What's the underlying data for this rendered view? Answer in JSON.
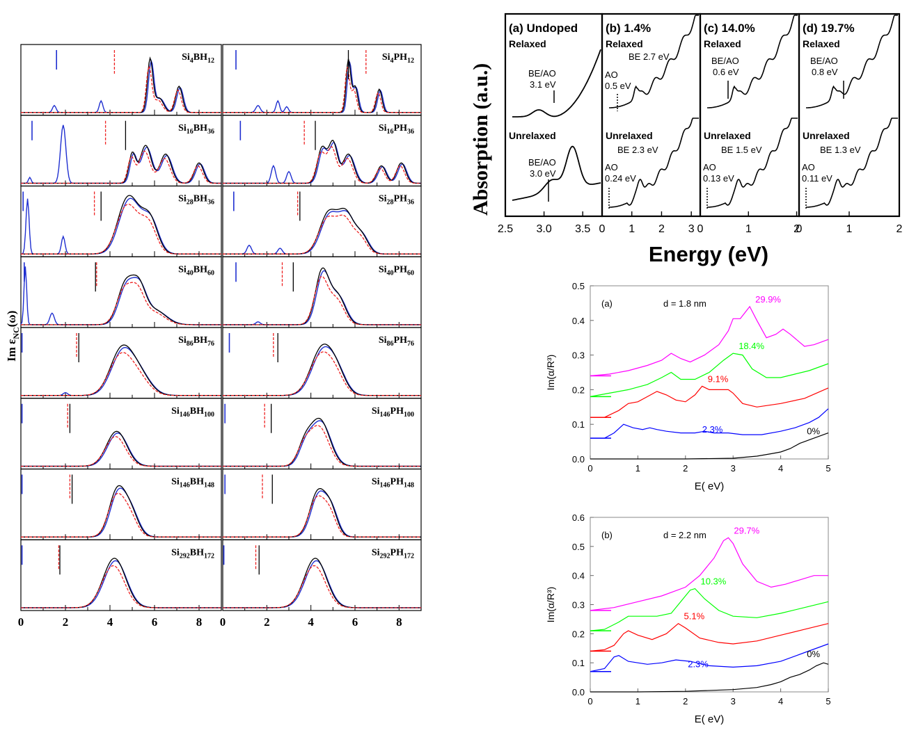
{
  "left_panel": {
    "ylabel": "Im ε",
    "ylabel_sub": "NC",
    "ylabel_tail": "(ω)",
    "x_ticks": [
      "0",
      "2",
      "4",
      "6",
      "8"
    ],
    "xlim": [
      0,
      9
    ],
    "columns": [
      {
        "name": "boron",
        "labels": [
          {
            "a": "Si",
            "as": "4",
            "b": "BH",
            "bs": "12"
          },
          {
            "a": "Si",
            "as": "16",
            "b": "BH",
            "bs": "36"
          },
          {
            "a": "Si",
            "as": "28",
            "b": "BH",
            "bs": "36"
          },
          {
            "a": "Si",
            "as": "40",
            "b": "BH",
            "bs": "60"
          },
          {
            "a": "Si",
            "as": "86",
            "b": "BH",
            "bs": "76"
          },
          {
            "a": "Si",
            "as": "146",
            "b": "BH",
            "bs": "100"
          },
          {
            "a": "Si",
            "as": "146",
            "b": "BH",
            "bs": "148"
          },
          {
            "a": "Si",
            "as": "292",
            "b": "BH",
            "bs": "172"
          }
        ]
      },
      {
        "name": "phosphorus",
        "labels": [
          {
            "a": "Si",
            "as": "4",
            "b": "PH",
            "bs": "12"
          },
          {
            "a": "Si",
            "as": "16",
            "b": "PH",
            "bs": "36"
          },
          {
            "a": "Si",
            "as": "28",
            "b": "PH",
            "bs": "36"
          },
          {
            "a": "Si",
            "as": "40",
            "b": "PH",
            "bs": "60"
          },
          {
            "a": "Si",
            "as": "86",
            "b": "PH",
            "bs": "76"
          },
          {
            "a": "Si",
            "as": "146",
            "b": "PH",
            "bs": "100"
          },
          {
            "a": "Si",
            "as": "146",
            "b": "PH",
            "bs": "148"
          },
          {
            "a": "Si",
            "as": "292",
            "b": "PH",
            "bs": "172"
          }
        ]
      }
    ]
  },
  "top_right": {
    "ylabel": "Absorption (a.u.)",
    "xlabel": "Energy (eV)",
    "panels": [
      {
        "title": "(a) Undoped",
        "relaxed": "Relaxed",
        "unrelaxed": "Unrelaxed",
        "ann_r": [
          "BE/AO",
          "3.1 eV"
        ],
        "ann_u": [
          "BE/AO",
          "3.0 eV"
        ],
        "ticks": [
          "2.5",
          "3.0",
          "3.5"
        ],
        "xlim": [
          2.5,
          3.75
        ]
      },
      {
        "title": "(b) 1.4%",
        "relaxed": "Relaxed",
        "unrelaxed": "Unrelaxed",
        "ann_r_be": "BE 2.7 eV",
        "ann_r_ao": [
          "AO",
          "0.5 eV"
        ],
        "ann_u_be": "BE 2.3 eV",
        "ann_u_ao": [
          "AO",
          "0.24 eV"
        ],
        "ticks": [
          "0",
          "1",
          "2",
          "3"
        ],
        "xlim": [
          0,
          3.3
        ]
      },
      {
        "title": "(c) 14.0%",
        "relaxed": "Relaxed",
        "unrelaxed": "Unrelaxed",
        "ann_r": [
          "BE/AO",
          "0.6 eV"
        ],
        "ann_u_be": "BE 1.5 eV",
        "ann_u_ao": [
          "AO",
          "0.13 eV"
        ],
        "ticks": [
          "0",
          "1",
          "2"
        ],
        "xlim": [
          0,
          2.05
        ]
      },
      {
        "title": "(d) 19.7%",
        "relaxed": "Relaxed",
        "unrelaxed": "Unrelaxed",
        "ann_r": [
          "BE/AO",
          "0.8 eV"
        ],
        "ann_u_be": "BE 1.3 eV",
        "ann_u_ao": [
          "AO",
          "0.11 eV"
        ],
        "ticks": [
          "0",
          "1",
          "2"
        ],
        "xlim": [
          0,
          2.0
        ]
      }
    ]
  },
  "chart_data": [
    {
      "type": "line",
      "title": "(a)",
      "annotation": "d = 1.8 nm",
      "xlabel": "E( eV)",
      "ylabel": "Im(α/R³)",
      "xlim": [
        0,
        5
      ],
      "ylim": [
        0,
        0.5
      ],
      "x_ticks": [
        "0",
        "1",
        "2",
        "3",
        "4",
        "5"
      ],
      "y_ticks": [
        "0.0",
        "0.1",
        "0.2",
        "0.3",
        "0.4",
        "0.5"
      ],
      "series": [
        {
          "name": "29.9%",
          "color": "#ff00ff",
          "points": [
            [
              0,
              0.24
            ],
            [
              0.4,
              0.245
            ],
            [
              0.8,
              0.255
            ],
            [
              1.2,
              0.27
            ],
            [
              1.5,
              0.285
            ],
            [
              1.7,
              0.305
            ],
            [
              1.9,
              0.29
            ],
            [
              2.1,
              0.28
            ],
            [
              2.4,
              0.3
            ],
            [
              2.7,
              0.33
            ],
            [
              2.9,
              0.37
            ],
            [
              3.0,
              0.405
            ],
            [
              3.15,
              0.405
            ],
            [
              3.35,
              0.44
            ],
            [
              3.5,
              0.4
            ],
            [
              3.7,
              0.35
            ],
            [
              3.9,
              0.36
            ],
            [
              4.05,
              0.375
            ],
            [
              4.2,
              0.36
            ],
            [
              4.5,
              0.325
            ],
            [
              4.7,
              0.33
            ],
            [
              5,
              0.345
            ]
          ]
        },
        {
          "name": "18.4%",
          "color": "#00ff00",
          "points": [
            [
              0,
              0.18
            ],
            [
              0.4,
              0.19
            ],
            [
              0.8,
              0.2
            ],
            [
              1.2,
              0.215
            ],
            [
              1.5,
              0.235
            ],
            [
              1.7,
              0.25
            ],
            [
              1.9,
              0.23
            ],
            [
              2.2,
              0.23
            ],
            [
              2.5,
              0.25
            ],
            [
              2.8,
              0.285
            ],
            [
              3.0,
              0.305
            ],
            [
              3.2,
              0.3
            ],
            [
              3.4,
              0.26
            ],
            [
              3.7,
              0.235
            ],
            [
              4.0,
              0.235
            ],
            [
              4.3,
              0.245
            ],
            [
              4.6,
              0.255
            ],
            [
              5,
              0.275
            ]
          ]
        },
        {
          "name": "9.1%",
          "color": "#ff0000",
          "points": [
            [
              0,
              0.12
            ],
            [
              0.3,
              0.12
            ],
            [
              0.6,
              0.14
            ],
            [
              0.8,
              0.16
            ],
            [
              1.0,
              0.165
            ],
            [
              1.2,
              0.18
            ],
            [
              1.4,
              0.195
            ],
            [
              1.6,
              0.185
            ],
            [
              1.8,
              0.17
            ],
            [
              2.0,
              0.165
            ],
            [
              2.2,
              0.185
            ],
            [
              2.35,
              0.21
            ],
            [
              2.5,
              0.2
            ],
            [
              2.7,
              0.2
            ],
            [
              2.9,
              0.2
            ],
            [
              3.0,
              0.19
            ],
            [
              3.2,
              0.16
            ],
            [
              3.5,
              0.15
            ],
            [
              4.0,
              0.16
            ],
            [
              4.5,
              0.175
            ],
            [
              5,
              0.205
            ]
          ]
        },
        {
          "name": "2.3%",
          "color": "#0000ff",
          "points": [
            [
              0,
              0.06
            ],
            [
              0.3,
              0.06
            ],
            [
              0.5,
              0.075
            ],
            [
              0.7,
              0.1
            ],
            [
              0.9,
              0.09
            ],
            [
              1.1,
              0.085
            ],
            [
              1.25,
              0.09
            ],
            [
              1.4,
              0.085
            ],
            [
              1.6,
              0.08
            ],
            [
              1.9,
              0.075
            ],
            [
              2.2,
              0.075
            ],
            [
              2.4,
              0.08
            ],
            [
              2.6,
              0.075
            ],
            [
              2.9,
              0.075
            ],
            [
              3.2,
              0.07
            ],
            [
              3.6,
              0.07
            ],
            [
              4.0,
              0.08
            ],
            [
              4.3,
              0.09
            ],
            [
              4.6,
              0.105
            ],
            [
              4.8,
              0.12
            ],
            [
              5,
              0.145
            ]
          ]
        },
        {
          "name": "0%",
          "color": "#000000",
          "points": [
            [
              0,
              0.0
            ],
            [
              1,
              0.0
            ],
            [
              2,
              0.0
            ],
            [
              3,
              0.002
            ],
            [
              3.5,
              0.008
            ],
            [
              3.8,
              0.015
            ],
            [
              4.0,
              0.02
            ],
            [
              4.2,
              0.03
            ],
            [
              4.4,
              0.045
            ],
            [
              4.6,
              0.055
            ],
            [
              4.8,
              0.065
            ],
            [
              5,
              0.075
            ]
          ]
        }
      ]
    },
    {
      "type": "line",
      "title": "(b)",
      "annotation": "d = 2.2 nm",
      "xlabel": "E( eV)",
      "ylabel": "Im(α/R³)",
      "xlim": [
        0,
        5
      ],
      "ylim": [
        0,
        0.6
      ],
      "x_ticks": [
        "0",
        "1",
        "2",
        "3",
        "4",
        "5"
      ],
      "y_ticks": [
        "0.0",
        "0.1",
        "0.2",
        "0.3",
        "0.4",
        "0.5",
        "0.6"
      ],
      "series": [
        {
          "name": "29.7%",
          "color": "#ff00ff",
          "points": [
            [
              0,
              0.28
            ],
            [
              0.5,
              0.29
            ],
            [
              1.0,
              0.31
            ],
            [
              1.5,
              0.33
            ],
            [
              2.0,
              0.36
            ],
            [
              2.3,
              0.4
            ],
            [
              2.6,
              0.46
            ],
            [
              2.8,
              0.52
            ],
            [
              2.9,
              0.53
            ],
            [
              3.0,
              0.51
            ],
            [
              3.2,
              0.44
            ],
            [
              3.5,
              0.38
            ],
            [
              3.8,
              0.36
            ],
            [
              4.1,
              0.37
            ],
            [
              4.4,
              0.385
            ],
            [
              4.7,
              0.4
            ],
            [
              5,
              0.4
            ]
          ]
        },
        {
          "name": "10.3%",
          "color": "#00ff00",
          "points": [
            [
              0,
              0.21
            ],
            [
              0.3,
              0.215
            ],
            [
              0.6,
              0.24
            ],
            [
              0.8,
              0.26
            ],
            [
              1.0,
              0.26
            ],
            [
              1.4,
              0.26
            ],
            [
              1.7,
              0.27
            ],
            [
              1.9,
              0.31
            ],
            [
              2.1,
              0.35
            ],
            [
              2.2,
              0.355
            ],
            [
              2.4,
              0.32
            ],
            [
              2.7,
              0.28
            ],
            [
              3.0,
              0.26
            ],
            [
              3.5,
              0.255
            ],
            [
              4.0,
              0.27
            ],
            [
              4.5,
              0.29
            ],
            [
              5,
              0.31
            ]
          ]
        },
        {
          "name": "5.1%",
          "color": "#ff0000",
          "points": [
            [
              0,
              0.14
            ],
            [
              0.3,
              0.145
            ],
            [
              0.5,
              0.16
            ],
            [
              0.7,
              0.2
            ],
            [
              0.8,
              0.21
            ],
            [
              1.0,
              0.195
            ],
            [
              1.3,
              0.18
            ],
            [
              1.6,
              0.2
            ],
            [
              1.85,
              0.235
            ],
            [
              2.0,
              0.22
            ],
            [
              2.3,
              0.185
            ],
            [
              2.7,
              0.17
            ],
            [
              3.0,
              0.165
            ],
            [
              3.5,
              0.175
            ],
            [
              4.0,
              0.195
            ],
            [
              4.5,
              0.215
            ],
            [
              5,
              0.235
            ]
          ]
        },
        {
          "name": "2.3%",
          "color": "#0000ff",
          "points": [
            [
              0,
              0.07
            ],
            [
              0.3,
              0.08
            ],
            [
              0.5,
              0.12
            ],
            [
              0.6,
              0.125
            ],
            [
              0.8,
              0.105
            ],
            [
              1.0,
              0.1
            ],
            [
              1.2,
              0.095
            ],
            [
              1.5,
              0.1
            ],
            [
              1.8,
              0.11
            ],
            [
              2.1,
              0.105
            ],
            [
              2.5,
              0.09
            ],
            [
              3.0,
              0.085
            ],
            [
              3.5,
              0.09
            ],
            [
              4.0,
              0.105
            ],
            [
              4.5,
              0.135
            ],
            [
              5,
              0.165
            ]
          ]
        },
        {
          "name": "0%",
          "color": "#000000",
          "points": [
            [
              0,
              0.0
            ],
            [
              1,
              0.0
            ],
            [
              2,
              0.002
            ],
            [
              3,
              0.008
            ],
            [
              3.5,
              0.015
            ],
            [
              3.8,
              0.025
            ],
            [
              4.0,
              0.035
            ],
            [
              4.2,
              0.05
            ],
            [
              4.4,
              0.06
            ],
            [
              4.6,
              0.075
            ],
            [
              4.75,
              0.09
            ],
            [
              4.9,
              0.1
            ],
            [
              5,
              0.095
            ]
          ]
        }
      ]
    }
  ]
}
